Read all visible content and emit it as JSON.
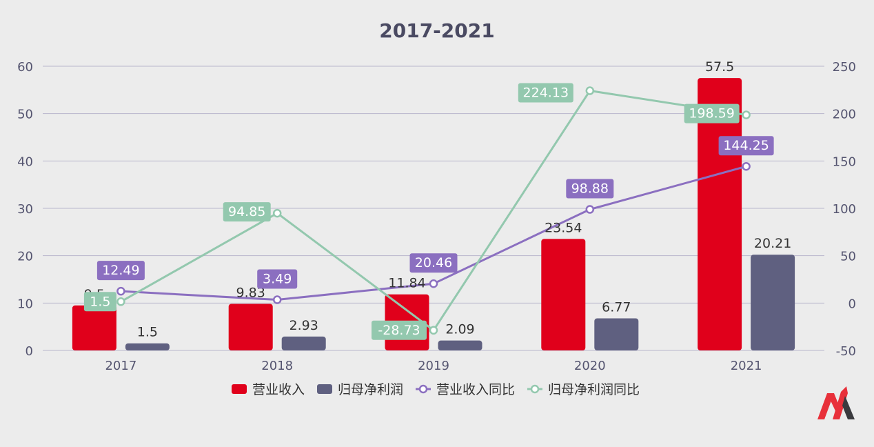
{
  "chart_data": {
    "type": "bar",
    "title": "2017-2021",
    "categories": [
      "2017",
      "2018",
      "2019",
      "2020",
      "2021"
    ],
    "series": [
      {
        "name": "营业收入",
        "type": "bar",
        "axis": "left",
        "color": "#e0001b",
        "values": [
          9.5,
          9.83,
          11.84,
          23.54,
          57.5
        ]
      },
      {
        "name": "归母净利润",
        "type": "bar",
        "axis": "left",
        "color": "#5f6080",
        "values": [
          1.5,
          2.93,
          2.09,
          6.77,
          20.21
        ]
      },
      {
        "name": "营业收入同比",
        "type": "line",
        "axis": "right",
        "color": "#8b6fc0",
        "values": [
          12.49,
          3.49,
          20.46,
          98.88,
          144.25
        ]
      },
      {
        "name": "归母净利润同比",
        "type": "line",
        "axis": "right",
        "color": "#93c8ae",
        "values": [
          1.5,
          94.85,
          -28.73,
          224.13,
          198.59
        ]
      }
    ],
    "y_left": {
      "range": [
        0,
        60
      ],
      "ticks": [
        "0",
        "10",
        "20",
        "30",
        "40",
        "50",
        "60"
      ]
    },
    "y_right": {
      "range": [
        -50,
        250
      ],
      "ticks": [
        "-50",
        "0",
        "50",
        "100",
        "150",
        "200",
        "250"
      ]
    },
    "grid": true,
    "legend_position": "bottom"
  },
  "colors": {
    "background": "#ececec",
    "grid": "#b9b6cc",
    "axis_text": "#555570",
    "title": "#4a4a62",
    "logo_red": "#e8303a",
    "logo_dark": "#3a3a3e"
  },
  "logo": {
    "icon": "brand-logo-icon"
  }
}
